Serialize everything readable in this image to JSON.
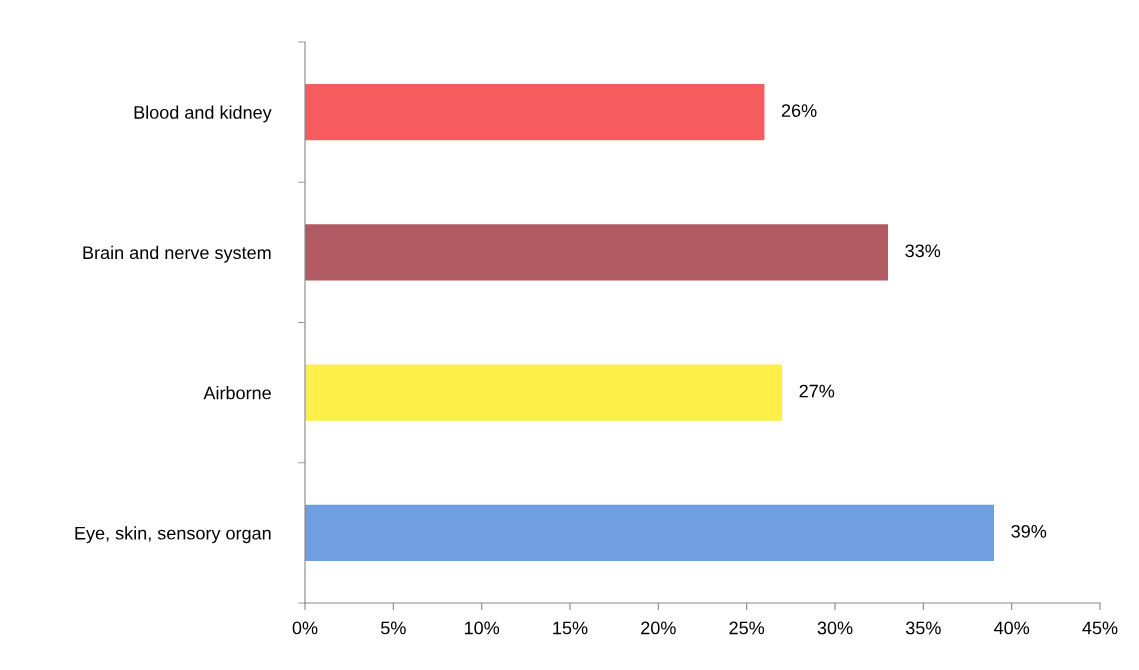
{
  "chart_data": {
    "type": "bar",
    "orientation": "horizontal",
    "categories": [
      "Blood and kidney",
      "Brain and nerve system",
      "Airborne",
      "Eye, skin, sensory organ"
    ],
    "values": [
      26,
      33,
      27,
      39
    ],
    "colors": [
      "#f65b5e",
      "#b25a62",
      "#fdee48",
      "#6f9ee2"
    ],
    "value_labels": [
      "26%",
      "33%",
      "27%",
      "39%"
    ],
    "xlim": [
      0,
      45
    ],
    "xticks": [
      {
        "value": 0,
        "label": "0%"
      },
      {
        "value": 5,
        "label": "5%"
      },
      {
        "value": 10,
        "label": "10%"
      },
      {
        "value": 15,
        "label": "15%"
      },
      {
        "value": 20,
        "label": "20%"
      },
      {
        "value": 25,
        "label": "25%"
      },
      {
        "value": 30,
        "label": "30%"
      },
      {
        "value": 35,
        "label": "35%"
      },
      {
        "value": 40,
        "label": "40%"
      },
      {
        "value": 45,
        "label": "45%"
      }
    ],
    "grid": false,
    "legend": false
  }
}
